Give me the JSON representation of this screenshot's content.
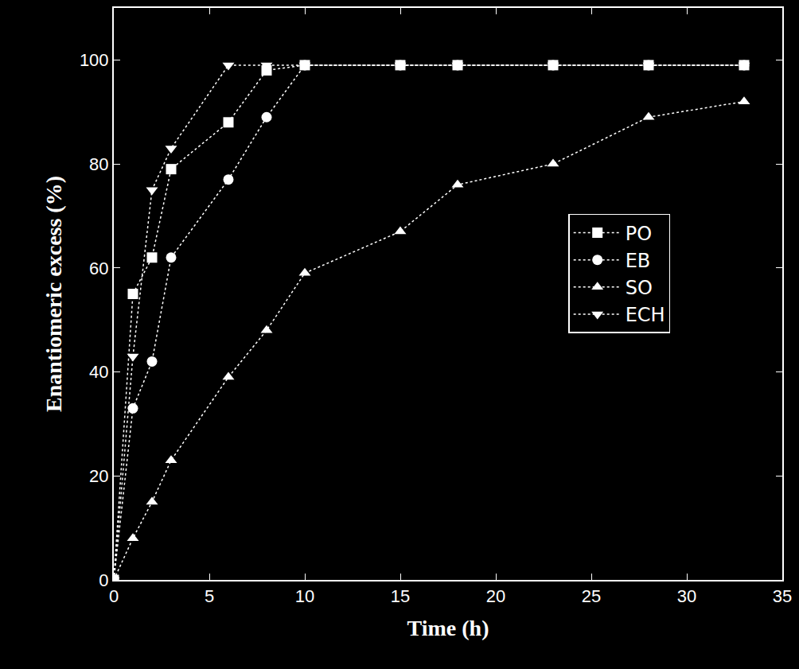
{
  "chart_data": {
    "type": "line",
    "x_label": "Time (h)",
    "y_label": "Enantiomeric excess (%)",
    "xlim": [
      0,
      35
    ],
    "xticks": [
      0,
      5,
      10,
      15,
      20,
      25,
      30,
      35
    ],
    "ylim": [
      0,
      110
    ],
    "yticks": [
      0,
      20,
      40,
      60,
      80,
      100
    ],
    "grid": false,
    "legend": "right",
    "series": [
      {
        "name": "PO",
        "color": "#ffffff",
        "marker": "square",
        "line_style": "dotted",
        "x": [
          0,
          1,
          2,
          3,
          6,
          8,
          10,
          15,
          18,
          23,
          28,
          33
        ],
        "values": [
          0,
          55,
          62,
          79,
          88,
          98,
          99,
          99,
          99,
          99,
          99,
          99
        ]
      },
      {
        "name": "EB",
        "color": "#ffffff",
        "marker": "circle",
        "line_style": "dotted",
        "x": [
          0,
          1,
          2,
          3,
          6,
          8,
          10,
          15,
          18,
          23,
          28,
          33
        ],
        "values": [
          0,
          33,
          42,
          62,
          77,
          89,
          99,
          99,
          99,
          99,
          99,
          99
        ]
      },
      {
        "name": "SO",
        "color": "#ffffff",
        "marker": "triangle-up",
        "line_style": "dotted",
        "x": [
          0,
          1,
          2,
          3,
          6,
          8,
          10,
          15,
          18,
          23,
          28,
          33
        ],
        "values": [
          0,
          8,
          15,
          23,
          39,
          48,
          59,
          67,
          76,
          80,
          89,
          92
        ]
      },
      {
        "name": "ECH",
        "color": "#ffffff",
        "marker": "triangle-down",
        "line_style": "dotted",
        "x": [
          0,
          1,
          2,
          3,
          6,
          8,
          10,
          15,
          18,
          23,
          28,
          33
        ],
        "values": [
          0,
          43,
          75,
          83,
          99,
          99,
          99,
          99,
          99,
          99,
          99,
          99
        ]
      }
    ]
  }
}
